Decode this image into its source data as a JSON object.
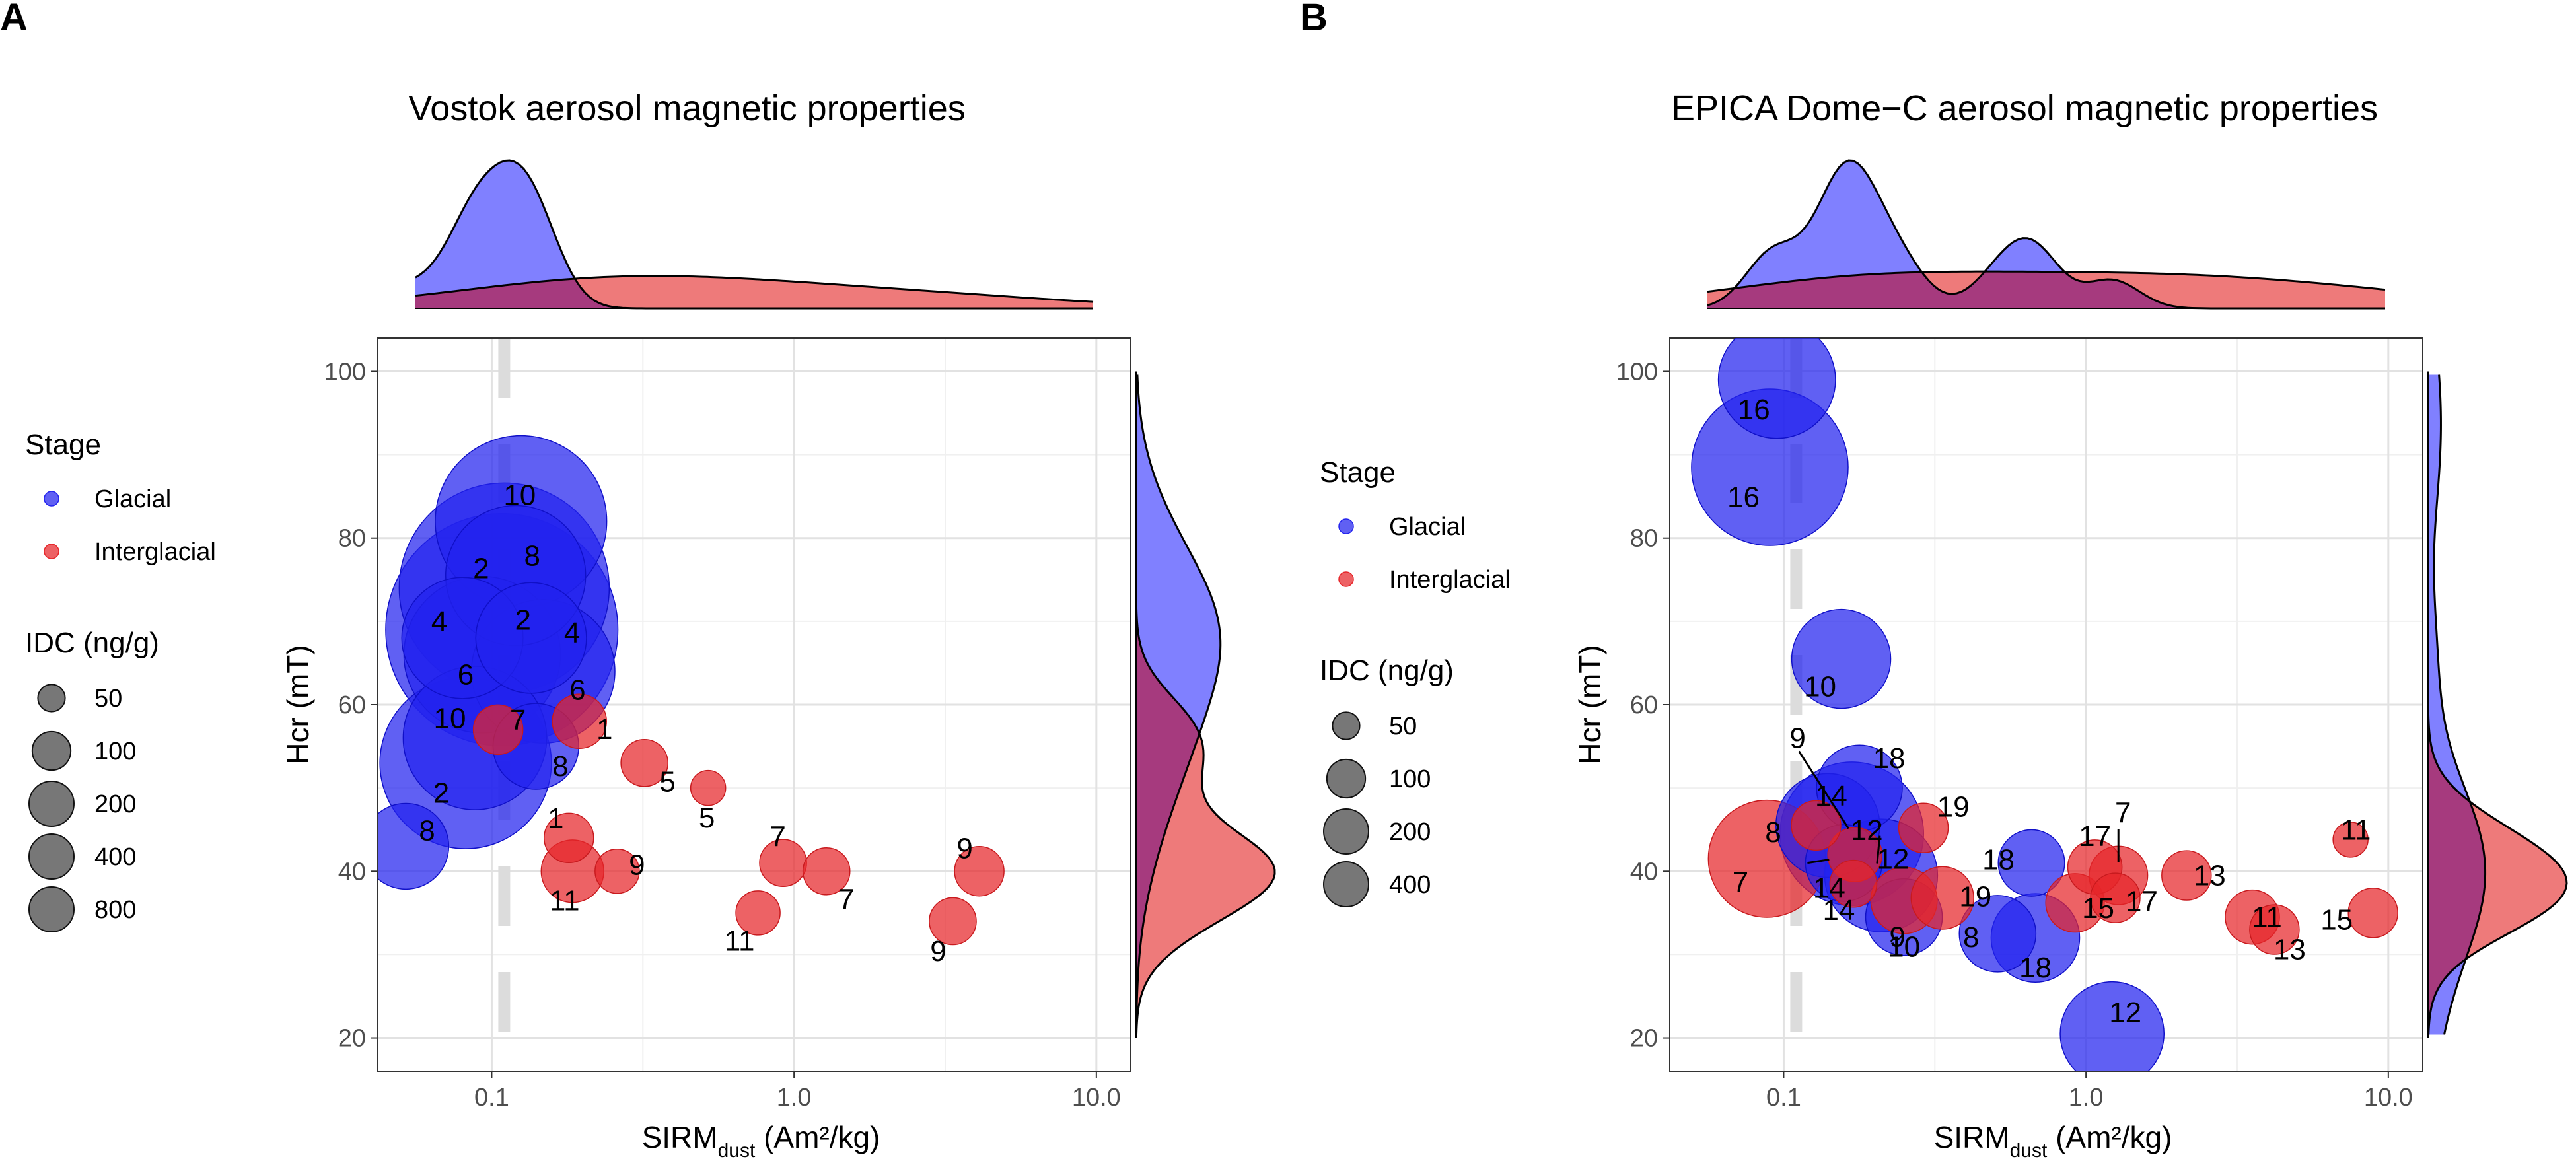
{
  "colors": {
    "glacial": "#2222ee",
    "interglacial": "#e6262a",
    "glacial_density": "#8080ff",
    "interglacial_density": "#ee7a7a",
    "overlap_density": "#a63a7e"
  },
  "chart_data": [
    {
      "type": "scatter",
      "panel": "A",
      "title": "Vostok aerosol magnetic properties",
      "xlabel_main": "SIRM",
      "xlabel_sub": "dust",
      "xlabel_unit": "(Am²/kg)",
      "ylabel": "Hcr (mT)",
      "xscale": "log10",
      "xlim": [
        0.042,
        13.0
      ],
      "ylim": [
        16,
        104
      ],
      "xticks": [
        0.1,
        1.0,
        10.0
      ],
      "xtick_labels": [
        "0.1",
        "1.0",
        "10.0"
      ],
      "yticks": [
        20,
        40,
        60,
        80,
        100
      ],
      "ytick_labels": [
        "20",
        "40",
        "60",
        "80",
        "100"
      ],
      "reference_line_x": 0.11,
      "legend": {
        "color_title": "Stage",
        "color_items": [
          "Glacial",
          "Interglacial"
        ],
        "size_title": "IDC (ng/g)",
        "size_items": [
          "50",
          "100",
          "200",
          "400",
          "800"
        ],
        "size_values": [
          50,
          100,
          200,
          400,
          800
        ]
      },
      "points": [
        {
          "x": 0.125,
          "y": 82,
          "stage": "Glacial",
          "idc": 600,
          "label": "10"
        },
        {
          "x": 0.12,
          "y": 75.5,
          "stage": "Glacial",
          "idc": 400,
          "label": "8"
        },
        {
          "x": 0.11,
          "y": 74,
          "stage": "Glacial",
          "idc": 900,
          "label": "2"
        },
        {
          "x": 0.108,
          "y": 69,
          "stage": "Glacial",
          "idc": 1100,
          "label": "2"
        },
        {
          "x": 0.08,
          "y": 68,
          "stage": "Glacial",
          "idc": 300,
          "label": "4"
        },
        {
          "x": 0.093,
          "y": 66,
          "stage": "Glacial",
          "idc": 500,
          "label": "6"
        },
        {
          "x": 0.135,
          "y": 68,
          "stage": "Glacial",
          "idc": 250,
          "label": "4"
        },
        {
          "x": 0.148,
          "y": 64,
          "stage": "Glacial",
          "idc": 420,
          "label": "6"
        },
        {
          "x": 0.088,
          "y": 56,
          "stage": "Glacial",
          "idc": 420,
          "label": "10"
        },
        {
          "x": 0.082,
          "y": 53,
          "stage": "Glacial",
          "idc": 600,
          "label": "2"
        },
        {
          "x": 0.14,
          "y": 55,
          "stage": "Glacial",
          "idc": 150,
          "label": "8"
        },
        {
          "x": 0.052,
          "y": 43,
          "stage": "Glacial",
          "idc": 150,
          "label": "8"
        },
        {
          "x": 0.105,
          "y": 57,
          "stage": "Interglacial",
          "idc": 50,
          "label": "7"
        },
        {
          "x": 0.195,
          "y": 58,
          "stage": "Interglacial",
          "idc": 60,
          "label": "1"
        },
        {
          "x": 0.32,
          "y": 53,
          "stage": "Interglacial",
          "idc": 45,
          "label": "5"
        },
        {
          "x": 0.52,
          "y": 50,
          "stage": "Interglacial",
          "idc": 25,
          "label": "5"
        },
        {
          "x": 0.18,
          "y": 44,
          "stage": "Interglacial",
          "idc": 50,
          "label": "1"
        },
        {
          "x": 0.185,
          "y": 40,
          "stage": "Interglacial",
          "idc": 80,
          "label": "11"
        },
        {
          "x": 0.26,
          "y": 40,
          "stage": "Interglacial",
          "idc": 40,
          "label": "9"
        },
        {
          "x": 0.92,
          "y": 41,
          "stage": "Interglacial",
          "idc": 45,
          "label": "7"
        },
        {
          "x": 1.28,
          "y": 40,
          "stage": "Interglacial",
          "idc": 45,
          "label": "7"
        },
        {
          "x": 0.76,
          "y": 35,
          "stage": "Interglacial",
          "idc": 40,
          "label": "11"
        },
        {
          "x": 4.1,
          "y": 40,
          "stage": "Interglacial",
          "idc": 50,
          "label": "9"
        },
        {
          "x": 3.35,
          "y": 34,
          "stage": "Interglacial",
          "idc": 45,
          "label": "9"
        }
      ]
    },
    {
      "type": "scatter",
      "panel": "B",
      "title": "EPICA Dome−C aerosol magnetic properties",
      "xlabel_main": "SIRM",
      "xlabel_sub": "dust",
      "xlabel_unit": "(Am²/kg)",
      "ylabel": "Hcr (mT)",
      "xscale": "log10",
      "xlim": [
        0.042,
        13.0
      ],
      "ylim": [
        16,
        104
      ],
      "xticks": [
        0.1,
        1.0,
        10.0
      ],
      "xtick_labels": [
        "0.1",
        "1.0",
        "10.0"
      ],
      "yticks": [
        20,
        40,
        60,
        80,
        100
      ],
      "ytick_labels": [
        "20",
        "40",
        "60",
        "80",
        "100"
      ],
      "reference_line_x": 0.11,
      "legend": {
        "color_title": "Stage",
        "color_items": [
          "Glacial",
          "Interglacial"
        ],
        "size_title": "IDC (ng/g)",
        "size_items": [
          "50",
          "100",
          "200",
          "400"
        ],
        "size_values": [
          50,
          100,
          200,
          400
        ]
      },
      "points": [
        {
          "x": 0.095,
          "y": 99,
          "stage": "Glacial",
          "idc": 280,
          "label": "16"
        },
        {
          "x": 0.09,
          "y": 88.5,
          "stage": "Glacial",
          "idc": 500,
          "label": "16"
        },
        {
          "x": 0.155,
          "y": 65.5,
          "stage": "Glacial",
          "idc": 200,
          "label": "10"
        },
        {
          "x": 0.178,
          "y": 50,
          "stage": "Glacial",
          "idc": 150,
          "label": "18"
        },
        {
          "x": 0.14,
          "y": 45.5,
          "stage": "Glacial",
          "idc": 220,
          "label": "14"
        },
        {
          "x": 0.168,
          "y": 44.5,
          "stage": "Glacial",
          "idc": 420,
          "label": "9"
        },
        {
          "x": 0.158,
          "y": 41,
          "stage": "Glacial",
          "idc": 120,
          "label": "14"
        },
        {
          "x": 0.21,
          "y": 39.5,
          "stage": "Glacial",
          "idc": 260,
          "label": "12"
        },
        {
          "x": 0.25,
          "y": 34.5,
          "stage": "Glacial",
          "idc": 120,
          "label": "10"
        },
        {
          "x": 0.51,
          "y": 32.5,
          "stage": "Glacial",
          "idc": 120,
          "label": "8"
        },
        {
          "x": 0.68,
          "y": 32,
          "stage": "Glacial",
          "idc": 160,
          "label": "18"
        },
        {
          "x": 0.66,
          "y": 41,
          "stage": "Glacial",
          "idc": 90,
          "label": "18"
        },
        {
          "x": 1.22,
          "y": 20.5,
          "stage": "Glacial",
          "idc": 220,
          "label": "12"
        },
        {
          "x": 0.088,
          "y": 41.5,
          "stage": "Interglacial",
          "idc": 280,
          "label": "7"
        },
        {
          "x": 0.128,
          "y": 45.5,
          "stage": "Interglacial",
          "idc": 50,
          "label": "8"
        },
        {
          "x": 0.172,
          "y": 42,
          "stage": "Interglacial",
          "idc": 60,
          "label": "12"
        },
        {
          "x": 0.17,
          "y": 38.5,
          "stage": "Interglacial",
          "idc": 45,
          "label": "14"
        },
        {
          "x": 0.25,
          "y": 36.5,
          "stage": "Interglacial",
          "idc": 90,
          "label": "9"
        },
        {
          "x": 0.29,
          "y": 45.2,
          "stage": "Interglacial",
          "idc": 50,
          "label": "19"
        },
        {
          "x": 0.335,
          "y": 36.8,
          "stage": "Interglacial",
          "idc": 80,
          "label": "19"
        },
        {
          "x": 0.92,
          "y": 36.2,
          "stage": "Interglacial",
          "idc": 70,
          "label": "15"
        },
        {
          "x": 1.07,
          "y": 40.5,
          "stage": "Interglacial",
          "idc": 60,
          "label": "17"
        },
        {
          "x": 1.28,
          "y": 39.5,
          "stage": "Interglacial",
          "idc": 70,
          "label": "7"
        },
        {
          "x": 1.25,
          "y": 36.8,
          "stage": "Interglacial",
          "idc": 50,
          "label": "17"
        },
        {
          "x": 2.15,
          "y": 39.5,
          "stage": "Interglacial",
          "idc": 50,
          "label": "13"
        },
        {
          "x": 3.55,
          "y": 34.5,
          "stage": "Interglacial",
          "idc": 60,
          "label": "11"
        },
        {
          "x": 4.2,
          "y": 33,
          "stage": "Interglacial",
          "idc": 50,
          "label": "13"
        },
        {
          "x": 7.5,
          "y": 43.8,
          "stage": "Interglacial",
          "idc": 25,
          "label": "11"
        },
        {
          "x": 8.9,
          "y": 35,
          "stage": "Interglacial",
          "idc": 50,
          "label": "15"
        }
      ]
    }
  ]
}
